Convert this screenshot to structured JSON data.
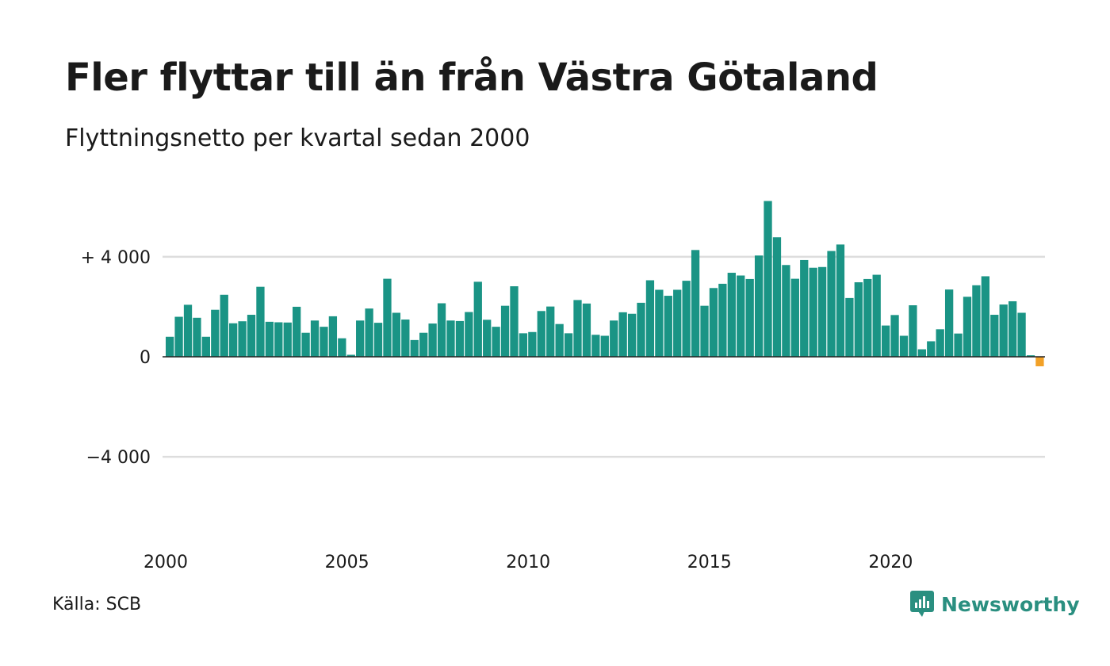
{
  "title": "Fler flyttar till än från Västra Götaland",
  "subtitle": "Flyttningsnetto per kvartal sedan 2000",
  "source": "Källa: SCB",
  "brand": "Newsworthy",
  "colors": {
    "bar": "#1a9485",
    "highlight": "#f2a127",
    "grid": "#dddddd",
    "zero_line": "#222222",
    "brand": "#2a8f80"
  },
  "chart_data": {
    "type": "bar",
    "ylim": [
      -6500,
      6500
    ],
    "y_ticks": [
      {
        "value": 4000,
        "label": "+ 4 000"
      },
      {
        "value": 0,
        "label": "0"
      },
      {
        "value": -4000,
        "label": "−4 000"
      }
    ],
    "x_ticks": [
      {
        "value": 2000,
        "label": "2000"
      },
      {
        "value": 2005,
        "label": "2005"
      },
      {
        "value": 2010,
        "label": "2010"
      },
      {
        "value": 2015,
        "label": "2015"
      },
      {
        "value": 2020,
        "label": "2020"
      }
    ],
    "x_start": 2000,
    "periods_per_year": 4,
    "grid": true,
    "highlight_last": true,
    "values": [
      800,
      1600,
      2080,
      1560,
      800,
      1880,
      2480,
      1340,
      1420,
      1680,
      2800,
      1400,
      1380,
      1370,
      2000,
      960,
      1450,
      1200,
      1620,
      740,
      80,
      1450,
      1930,
      1360,
      3120,
      1760,
      1490,
      670,
      960,
      1330,
      2140,
      1450,
      1430,
      1790,
      3000,
      1480,
      1200,
      2040,
      2820,
      940,
      990,
      1830,
      2010,
      1310,
      940,
      2270,
      2130,
      880,
      840,
      1450,
      1780,
      1720,
      2160,
      3060,
      2680,
      2440,
      2680,
      3040,
      4270,
      2040,
      2750,
      2920,
      3360,
      3250,
      3110,
      4050,
      6230,
      4780,
      3670,
      3120,
      3870,
      3560,
      3590,
      4230,
      4490,
      2350,
      2980,
      3110,
      3280,
      1250,
      1670,
      840,
      2060,
      300,
      620,
      1100,
      2690,
      930,
      2400,
      2860,
      3220,
      1680,
      2090,
      2220,
      1760,
      60,
      -380
    ]
  }
}
